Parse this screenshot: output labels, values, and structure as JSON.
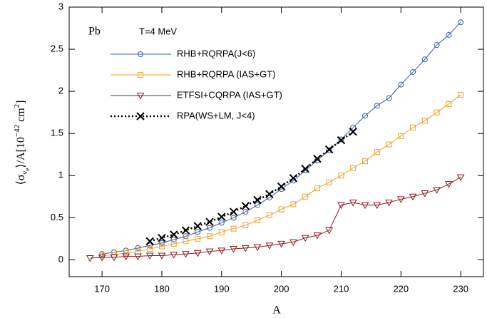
{
  "chart_data": {
    "type": "line",
    "annotations": [
      "Pb",
      "T=4 MeV"
    ],
    "x_label": "A",
    "y_label": [
      "⟨σ",
      "ν",
      "e",
      "⟩/A[10",
      "−42",
      " cm",
      "2",
      "]"
    ],
    "xlim": [
      164.5,
      233.8
    ],
    "ylim": [
      -0.2,
      3
    ],
    "xticks": [
      170,
      180,
      190,
      200,
      210,
      220,
      230
    ],
    "yticks": [
      0,
      0.5,
      1,
      1.5,
      2,
      2.5,
      3
    ],
    "series": [
      {
        "name": "RHB+RQRPA(J<6)",
        "color": "#3b5ea8",
        "marker": "circle",
        "linestyle": "solid",
        "x": [
          170,
          172,
          174,
          176,
          178,
          180,
          182,
          184,
          186,
          188,
          190,
          192,
          194,
          196,
          198,
          200,
          202,
          204,
          206,
          208,
          210,
          212,
          214,
          216,
          218,
          220,
          222,
          224,
          226,
          228,
          230
        ],
        "values": [
          0.07,
          0.09,
          0.11,
          0.14,
          0.17,
          0.2,
          0.24,
          0.28,
          0.33,
          0.38,
          0.44,
          0.5,
          0.57,
          0.65,
          0.74,
          0.84,
          0.94,
          1.06,
          1.18,
          1.3,
          1.43,
          1.57,
          1.71,
          1.83,
          1.92,
          2.08,
          2.23,
          2.38,
          2.55,
          2.67,
          2.82
        ]
      },
      {
        "name": "RHB+RQRPA (IAS+GT)",
        "color": "#f0a030",
        "marker": "square",
        "linestyle": "solid",
        "x": [
          170,
          172,
          174,
          176,
          178,
          180,
          182,
          184,
          186,
          188,
          190,
          192,
          194,
          196,
          198,
          200,
          202,
          204,
          206,
          208,
          210,
          212,
          214,
          216,
          218,
          220,
          222,
          224,
          226,
          228,
          230
        ],
        "values": [
          0.05,
          0.06,
          0.08,
          0.1,
          0.13,
          0.16,
          0.19,
          0.22,
          0.25,
          0.28,
          0.33,
          0.37,
          0.41,
          0.47,
          0.53,
          0.6,
          0.66,
          0.75,
          0.85,
          0.92,
          1.0,
          1.09,
          1.17,
          1.28,
          1.37,
          1.47,
          1.57,
          1.65,
          1.75,
          1.85,
          1.96
        ]
      },
      {
        "name": "ETFSI+CQRPA (IAS+GT)",
        "color": "#8b1a1a",
        "marker": "triangle-down",
        "linestyle": "solid",
        "x": [
          168,
          170,
          172,
          174,
          176,
          178,
          180,
          182,
          184,
          186,
          188,
          190,
          192,
          194,
          196,
          198,
          200,
          202,
          204,
          206,
          208,
          210,
          212,
          214,
          216,
          218,
          220,
          222,
          224,
          226,
          228,
          230
        ],
        "values": [
          0.02,
          0.03,
          0.03,
          0.04,
          0.04,
          0.05,
          0.05,
          0.06,
          0.07,
          0.08,
          0.1,
          0.11,
          0.13,
          0.14,
          0.15,
          0.17,
          0.19,
          0.21,
          0.26,
          0.29,
          0.35,
          0.65,
          0.68,
          0.65,
          0.65,
          0.68,
          0.72,
          0.75,
          0.79,
          0.83,
          0.9,
          0.98
        ]
      },
      {
        "name": "RPA(WS+LM, J<4)",
        "color": "#000000",
        "marker": "x",
        "linestyle": "dotted",
        "x": [
          178,
          180,
          182,
          184,
          186,
          188,
          190,
          192,
          194,
          196,
          198,
          200,
          202,
          204,
          206,
          208,
          210,
          212
        ],
        "values": [
          0.22,
          0.26,
          0.3,
          0.35,
          0.4,
          0.45,
          0.51,
          0.57,
          0.64,
          0.71,
          0.78,
          0.87,
          0.97,
          1.08,
          1.2,
          1.31,
          1.42,
          1.52
        ]
      }
    ]
  }
}
